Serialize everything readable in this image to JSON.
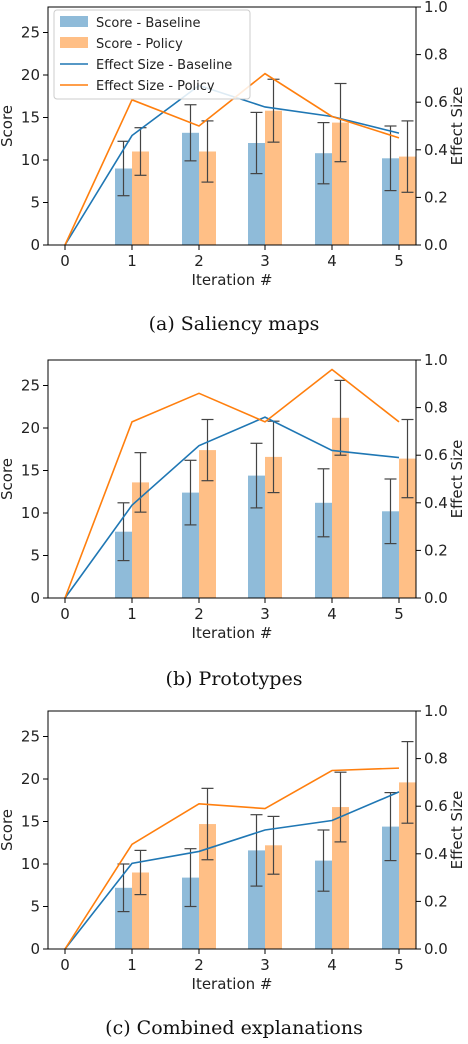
{
  "colors": {
    "baseline_bar": "#1f77b4",
    "policy_bar": "#ff7f0e",
    "baseline_line": "#1f77b4",
    "policy_line": "#ff7f0e",
    "error_bar": "#444444"
  },
  "chart_data": [
    {
      "type": "bar",
      "caption": "(a) Saliency maps",
      "xlabel": "Iteration #",
      "ylabel": "Score",
      "y2label": "Effect Size",
      "x": [
        0,
        1,
        2,
        3,
        4,
        5
      ],
      "ylim": [
        0,
        28
      ],
      "yticks": [
        0,
        5,
        10,
        15,
        20,
        25
      ],
      "y2lim": [
        0,
        1.0
      ],
      "y2ticks": [
        "0.0",
        "0.2",
        "0.4",
        "0.6",
        "0.8",
        "1.0"
      ],
      "legend": {
        "placement": "top-left",
        "entries": [
          "Score - Baseline",
          "Score - Policy",
          "Effect Size - Baseline",
          "Effect Size - Policy"
        ]
      },
      "series": [
        {
          "name": "Score - Baseline",
          "kind": "bar",
          "x": [
            1,
            2,
            3,
            4,
            5
          ],
          "values": [
            9.0,
            13.2,
            12.0,
            10.8,
            10.2
          ],
          "errors": [
            3.2,
            3.3,
            3.6,
            3.6,
            3.8
          ]
        },
        {
          "name": "Score - Policy",
          "kind": "bar",
          "x": [
            1,
            2,
            3,
            4,
            5
          ],
          "values": [
            11.0,
            11.0,
            15.8,
            14.4,
            10.4
          ],
          "errors": [
            2.8,
            3.6,
            3.7,
            4.6,
            4.2
          ]
        },
        {
          "name": "Effect Size - Baseline",
          "kind": "line",
          "x": [
            0,
            1,
            2,
            3,
            4,
            5
          ],
          "values": [
            0.0,
            0.46,
            0.67,
            0.58,
            0.54,
            0.47
          ]
        },
        {
          "name": "Effect Size - Policy",
          "kind": "line",
          "x": [
            0,
            1,
            2,
            3,
            4,
            5
          ],
          "values": [
            0.0,
            0.61,
            0.5,
            0.72,
            0.54,
            0.45
          ]
        }
      ]
    },
    {
      "type": "bar",
      "caption": "(b) Prototypes",
      "xlabel": "Iteration #",
      "ylabel": "Score",
      "y2label": "Effect Size",
      "x": [
        0,
        1,
        2,
        3,
        4,
        5
      ],
      "ylim": [
        0,
        28
      ],
      "yticks": [
        0,
        5,
        10,
        15,
        20,
        25
      ],
      "y2lim": [
        0,
        1.0
      ],
      "y2ticks": [
        "0.0",
        "0.2",
        "0.4",
        "0.6",
        "0.8",
        "1.0"
      ],
      "series": [
        {
          "name": "Score - Baseline",
          "kind": "bar",
          "x": [
            1,
            2,
            3,
            4,
            5
          ],
          "values": [
            7.8,
            12.4,
            14.4,
            11.2,
            10.2
          ],
          "errors": [
            3.4,
            3.8,
            3.8,
            4.0,
            3.8
          ]
        },
        {
          "name": "Score - Policy",
          "kind": "bar",
          "x": [
            1,
            2,
            3,
            4,
            5
          ],
          "values": [
            13.6,
            17.4,
            16.6,
            21.2,
            16.4
          ],
          "errors": [
            3.5,
            3.6,
            4.2,
            4.4,
            4.6
          ]
        },
        {
          "name": "Effect Size - Baseline",
          "kind": "line",
          "x": [
            0,
            1,
            2,
            3,
            4,
            5
          ],
          "values": [
            0.0,
            0.39,
            0.64,
            0.76,
            0.62,
            0.59
          ]
        },
        {
          "name": "Effect Size - Policy",
          "kind": "line",
          "x": [
            0,
            1,
            2,
            3,
            4,
            5
          ],
          "values": [
            0.0,
            0.74,
            0.86,
            0.74,
            0.96,
            0.74
          ]
        }
      ]
    },
    {
      "type": "bar",
      "caption": "(c) Combined explanations",
      "xlabel": "Iteration #",
      "ylabel": "Score",
      "y2label": "Effect Size",
      "x": [
        0,
        1,
        2,
        3,
        4,
        5
      ],
      "ylim": [
        0,
        28
      ],
      "yticks": [
        0,
        5,
        10,
        15,
        20,
        25
      ],
      "y2lim": [
        0,
        1.0
      ],
      "y2ticks": [
        "0.0",
        "0.2",
        "0.4",
        "0.6",
        "0.8",
        "1.0"
      ],
      "series": [
        {
          "name": "Score - Baseline",
          "kind": "bar",
          "x": [
            1,
            2,
            3,
            4,
            5
          ],
          "values": [
            7.2,
            8.4,
            11.6,
            10.4,
            14.4
          ],
          "errors": [
            2.8,
            3.4,
            4.2,
            3.6,
            4.0
          ]
        },
        {
          "name": "Score - Policy",
          "kind": "bar",
          "x": [
            1,
            2,
            3,
            4,
            5
          ],
          "values": [
            9.0,
            14.7,
            12.2,
            16.7,
            19.6
          ],
          "errors": [
            2.6,
            4.2,
            3.4,
            4.1,
            4.8
          ]
        },
        {
          "name": "Effect Size - Baseline",
          "kind": "line",
          "x": [
            0,
            1,
            2,
            3,
            4,
            5
          ],
          "values": [
            0.0,
            0.36,
            0.41,
            0.5,
            0.54,
            0.66
          ]
        },
        {
          "name": "Effect Size - Policy",
          "kind": "line",
          "x": [
            0,
            1,
            2,
            3,
            4,
            5
          ],
          "values": [
            0.0,
            0.44,
            0.61,
            0.59,
            0.75,
            0.76
          ]
        }
      ]
    }
  ]
}
